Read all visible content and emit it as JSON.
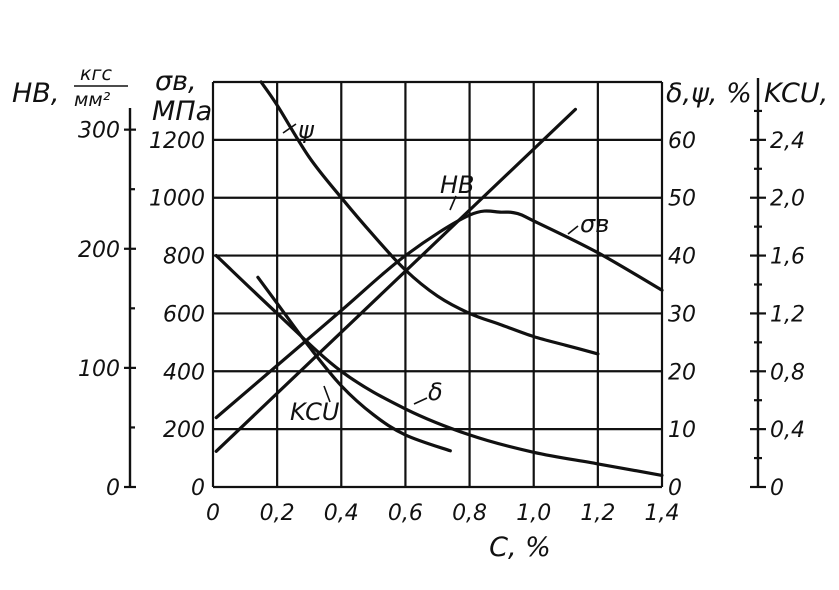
{
  "chart_data": {
    "type": "line",
    "x_axis": {
      "label": "C, %",
      "range": [
        0,
        1.4
      ],
      "ticks": [
        0,
        0.2,
        0.4,
        0.6,
        0.8,
        1.0,
        1.2,
        1.4
      ],
      "tick_labels": [
        "0",
        "0,2",
        "0,4",
        "0,6",
        "0,8",
        "1,0",
        "1,2",
        "1,4"
      ]
    },
    "axes": [
      {
        "id": "hb",
        "label": "HB,",
        "unit_num": "кгс",
        "unit_den": "мм²",
        "range": [
          0,
          340
        ],
        "ticks": [
          0,
          100,
          200,
          300
        ],
        "tick_labels": [
          "0",
          "100",
          "200",
          "300"
        ]
      },
      {
        "id": "sigma",
        "label": "σв,",
        "unit": "МПа",
        "range": [
          0,
          1400
        ],
        "ticks": [
          0,
          200,
          400,
          600,
          800,
          1000,
          1200
        ],
        "tick_labels": [
          "0",
          "200",
          "400",
          "600",
          "800",
          "1000",
          "1200"
        ]
      },
      {
        "id": "pct",
        "label": "δ,ψ, %",
        "range": [
          0,
          70
        ],
        "ticks": [
          0,
          10,
          20,
          30,
          40,
          50,
          60
        ],
        "tick_labels": [
          "0",
          "10",
          "20",
          "30",
          "40",
          "50",
          "60"
        ]
      },
      {
        "id": "kcu",
        "label": "KCU,",
        "range": [
          0,
          2.8
        ],
        "ticks": [
          0,
          0.4,
          0.8,
          1.2,
          1.6,
          2.0,
          2.4
        ],
        "tick_labels": [
          "0",
          "0,4",
          "0,8",
          "1,2",
          "1,6",
          "2,0",
          "2,4"
        ]
      }
    ],
    "series": [
      {
        "name": "ψ",
        "axis": "pct",
        "x": [
          0.15,
          0.2,
          0.3,
          0.4,
          0.5,
          0.6,
          0.7,
          0.8,
          0.9,
          1.0,
          1.1,
          1.2
        ],
        "y": [
          70,
          66,
          57,
          50,
          43.5,
          37.5,
          33,
          30,
          28,
          26,
          24.5,
          23
        ]
      },
      {
        "name": "HB",
        "axis": "hb",
        "x": [
          0.01,
          1.13
        ],
        "y": [
          30,
          317
        ]
      },
      {
        "name": "σв",
        "axis": "sigma",
        "x": [
          0.01,
          0.2,
          0.4,
          0.6,
          0.8,
          0.9,
          0.95,
          1.0,
          1.2,
          1.4
        ],
        "y": [
          240,
          420,
          610,
          800,
          940,
          950,
          945,
          920,
          810,
          680
        ]
      },
      {
        "name": "δ",
        "axis": "pct",
        "x": [
          0.01,
          0.2,
          0.4,
          0.6,
          0.8,
          1.0,
          1.2,
          1.4
        ],
        "y": [
          40,
          30,
          20,
          13.5,
          9,
          6,
          4,
          2
        ]
      },
      {
        "name": "KCU",
        "axis": "kcu",
        "x": [
          0.14,
          0.2,
          0.3,
          0.4,
          0.5,
          0.6,
          0.74
        ],
        "y": [
          1.45,
          1.27,
          0.97,
          0.7,
          0.5,
          0.36,
          0.25
        ]
      }
    ]
  }
}
